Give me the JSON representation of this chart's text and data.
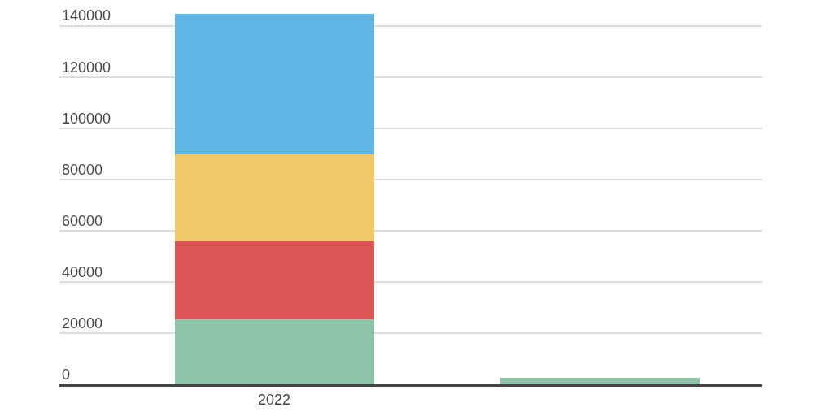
{
  "chart_data": {
    "type": "bar",
    "stacked": true,
    "categories": [
      "2022",
      null
    ],
    "series": [
      {
        "color": "#8fc3a8",
        "values": [
          25500,
          2400
        ]
      },
      {
        "color": "#dc5456",
        "values": [
          30200,
          null
        ]
      },
      {
        "color": "#eeca6c",
        "values": [
          34100,
          null
        ]
      },
      {
        "color": "#5fb6e4",
        "values": [
          55000,
          null
        ]
      }
    ],
    "ylim": [
      0,
      145000
    ],
    "yticks": [
      0,
      20000,
      40000,
      60000,
      80000,
      100000,
      120000,
      140000
    ],
    "grid": "y"
  }
}
